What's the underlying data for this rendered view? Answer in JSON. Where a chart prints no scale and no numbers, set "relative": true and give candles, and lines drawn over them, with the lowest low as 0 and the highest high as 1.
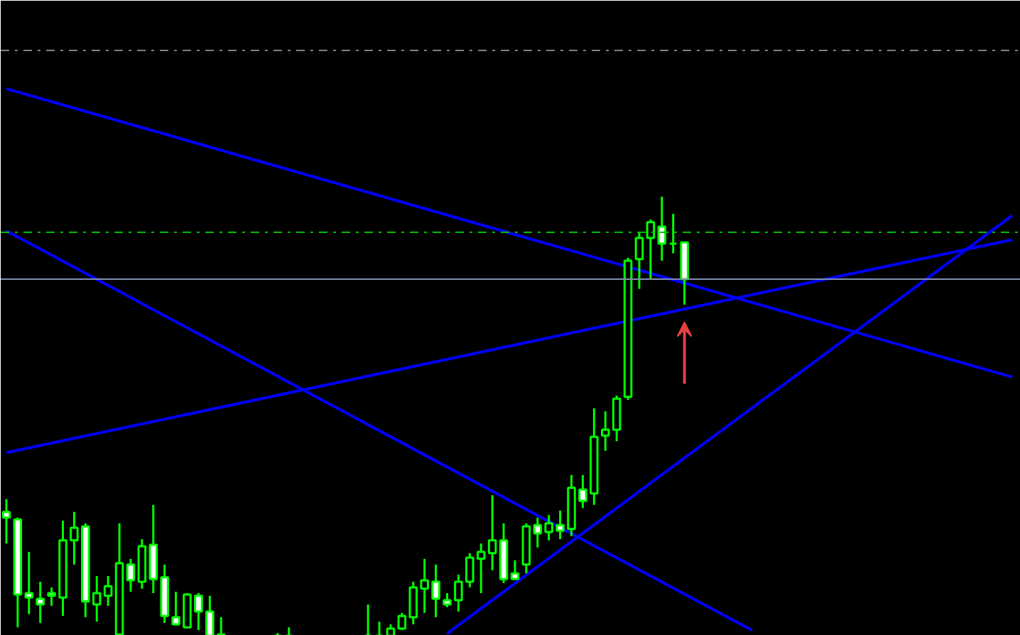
{
  "chart_data": {
    "type": "candlestick",
    "relative": true,
    "grid": false,
    "color": "#00ff00",
    "categories": [
      null,
      null,
      null,
      null,
      null,
      null,
      null,
      null,
      null,
      null,
      null,
      null,
      null,
      null,
      null,
      null,
      null,
      null,
      null,
      null,
      null,
      null,
      null,
      null,
      null,
      null,
      null,
      null,
      null,
      null,
      null,
      null,
      null,
      null,
      null,
      null,
      null,
      null,
      null,
      null,
      null,
      null,
      null,
      null,
      null,
      null,
      null,
      null,
      null,
      null,
      null,
      null,
      null,
      null,
      null,
      null,
      null,
      null,
      null,
      null,
      null,
      null,
      null,
      null,
      null,
      null,
      null,
      null,
      null,
      null,
      null,
      null,
      null,
      null,
      null,
      null,
      null,
      null,
      null,
      null,
      null,
      null,
      null,
      null,
      null,
      null,
      null,
      null,
      null,
      null
    ],
    "ohlc": [
      [
        0.282,
        0.311,
        0.21,
        0.269
      ],
      [
        0.265,
        0.269,
        0.019,
        0.094
      ],
      [
        0.097,
        0.191,
        0.049,
        0.087
      ],
      [
        0.084,
        0.123,
        0.029,
        0.071
      ],
      [
        0.097,
        0.11,
        0.068,
        0.091
      ],
      [
        0.087,
        0.262,
        0.045,
        0.217
      ],
      [
        0.217,
        0.282,
        0.162,
        0.246
      ],
      [
        0.249,
        0.256,
        0.042,
        0.078
      ],
      [
        0.071,
        0.136,
        0.032,
        0.097
      ],
      [
        0.091,
        0.136,
        0.068,
        0.113
      ],
      [
        0.003,
        0.256,
        0.0,
        0.165
      ],
      [
        0.162,
        0.175,
        0.1,
        0.126
      ],
      [
        0.123,
        0.22,
        0.107,
        0.204
      ],
      [
        0.207,
        0.298,
        0.097,
        0.129
      ],
      [
        0.133,
        0.162,
        0.029,
        0.045
      ],
      [
        0.042,
        0.1,
        0.023,
        0.026
      ],
      [
        0.019,
        0.097,
        0.019,
        0.094
      ],
      [
        0.091,
        0.097,
        0.013,
        0.055
      ],
      [
        0.055,
        0.091,
        0.0,
        0.0
      ],
      [
        0.003,
        0.042,
        0.0,
        0.0
      ],
      null,
      null,
      null,
      null,
      [
        0.0,
        0.006,
        0.0,
        0.0
      ],
      [
        0.0,
        0.019,
        0.0,
        0.0
      ],
      null,
      null,
      null,
      null,
      null,
      null,
      [
        0.0,
        0.071,
        0.0,
        0.0
      ],
      [
        0.0,
        0.032,
        0.0,
        0.0
      ],
      [
        0.0,
        0.026,
        0.0,
        0.016
      ],
      [
        0.016,
        0.052,
        0.013,
        0.045
      ],
      [
        0.042,
        0.123,
        0.026,
        0.11
      ],
      [
        0.107,
        0.175,
        0.052,
        0.126
      ],
      [
        0.123,
        0.162,
        0.042,
        0.084
      ],
      [
        0.081,
        0.097,
        0.065,
        0.071
      ],
      [
        0.081,
        0.139,
        0.055,
        0.123
      ],
      [
        0.123,
        0.188,
        0.11,
        0.178
      ],
      [
        0.175,
        0.21,
        0.097,
        0.191
      ],
      [
        0.188,
        0.32,
        0.149,
        0.217
      ],
      [
        0.217,
        0.256,
        0.12,
        0.129
      ],
      [
        0.142,
        0.172,
        0.129,
        0.129
      ],
      [
        0.162,
        0.256,
        0.142,
        0.249
      ],
      [
        0.252,
        0.269,
        0.201,
        0.233
      ],
      [
        0.236,
        0.275,
        0.217,
        0.256
      ],
      [
        0.252,
        0.285,
        0.22,
        0.239
      ],
      [
        0.243,
        0.366,
        0.227,
        0.337
      ],
      [
        0.333,
        0.366,
        0.291,
        0.307
      ],
      [
        0.324,
        0.518,
        0.298,
        0.453
      ],
      [
        0.456,
        0.511,
        0.421,
        0.469
      ],
      [
        0.469,
        0.547,
        0.443,
        0.54
      ],
      [
        0.544,
        0.861,
        0.537,
        0.854
      ],
      [
        0.858,
        0.919,
        0.79,
        0.906
      ],
      [
        0.906,
        0.948,
        0.812,
        0.942
      ],
      [
        0.932,
        1.0,
        0.854,
        0.893
      ],
      [
        0.893,
        0.961,
        0.871,
        0.893
      ],
      [
        0.896,
        0.896,
        0.754,
        0.812
      ],
      null,
      null,
      null,
      null,
      null,
      null,
      null,
      null,
      null,
      null,
      null,
      null,
      null,
      null,
      null,
      null,
      null,
      null,
      null,
      null,
      null,
      null,
      null,
      null,
      null,
      null,
      null,
      null,
      null
    ],
    "series": [
      {
        "type": "line",
        "color": "#0000ff",
        "values": [
          1.246,
          null,
          null,
          null,
          null,
          null,
          null,
          null,
          null,
          null,
          null,
          null,
          null,
          null,
          null,
          null,
          null,
          null,
          null,
          null,
          null,
          null,
          null,
          null,
          null,
          null,
          null,
          null,
          null,
          null,
          null,
          null,
          null,
          null,
          null,
          null,
          null,
          null,
          null,
          null,
          null,
          null,
          null,
          null,
          null,
          null,
          null,
          null,
          null,
          null,
          null,
          null,
          null,
          null,
          null,
          null,
          null,
          null,
          null,
          null,
          null,
          null,
          null,
          null,
          null,
          null,
          null,
          null,
          null,
          null,
          null,
          null,
          null,
          null,
          null,
          null,
          null,
          null,
          null,
          null,
          null,
          null,
          null,
          null,
          null,
          null,
          null,
          null,
          null,
          0.589
        ]
      },
      {
        "type": "line",
        "color": "#0000ff",
        "values": [
          0.922,
          null,
          null,
          null,
          null,
          null,
          null,
          null,
          null,
          null,
          null,
          null,
          null,
          null,
          null,
          null,
          null,
          null,
          null,
          null,
          null,
          null,
          null,
          null,
          null,
          null,
          null,
          null,
          null,
          null,
          null,
          null,
          null,
          null,
          null,
          null,
          null,
          null,
          null,
          null,
          null,
          null,
          null,
          null,
          null,
          null,
          null,
          null,
          null,
          null,
          null,
          null,
          null,
          null,
          null,
          null,
          null,
          null,
          null,
          null,
          null,
          null,
          null,
          null,
          null,
          null,
          0.012,
          null,
          null,
          null,
          null,
          null,
          null,
          null,
          null,
          null,
          null,
          null,
          null,
          null,
          null,
          null,
          null,
          null,
          null,
          null,
          null,
          null,
          null,
          null
        ]
      },
      {
        "type": "line",
        "color": "#0000ff",
        "values": [
          0.417,
          null,
          null,
          null,
          null,
          null,
          null,
          null,
          null,
          null,
          null,
          null,
          null,
          null,
          null,
          null,
          null,
          null,
          null,
          null,
          null,
          null,
          null,
          null,
          null,
          null,
          null,
          null,
          null,
          null,
          null,
          null,
          null,
          null,
          null,
          null,
          null,
          null,
          null,
          null,
          null,
          null,
          null,
          null,
          null,
          null,
          null,
          null,
          null,
          null,
          null,
          null,
          null,
          null,
          null,
          null,
          null,
          null,
          null,
          null,
          null,
          null,
          null,
          null,
          null,
          null,
          null,
          null,
          null,
          null,
          null,
          null,
          null,
          null,
          null,
          null,
          null,
          null,
          null,
          null,
          null,
          null,
          null,
          null,
          null,
          null,
          null,
          null,
          null,
          0.902
        ]
      },
      {
        "type": "line",
        "color": "#0000ff",
        "values": [
          null,
          null,
          null,
          null,
          null,
          null,
          null,
          null,
          null,
          null,
          null,
          null,
          null,
          null,
          null,
          null,
          null,
          null,
          null,
          null,
          null,
          null,
          null,
          null,
          null,
          null,
          null,
          null,
          null,
          null,
          null,
          null,
          null,
          null,
          null,
          null,
          null,
          null,
          null,
          0.005,
          null,
          null,
          null,
          null,
          null,
          null,
          null,
          null,
          null,
          null,
          null,
          null,
          null,
          null,
          null,
          null,
          null,
          null,
          null,
          null,
          null,
          null,
          null,
          null,
          null,
          null,
          null,
          null,
          null,
          null,
          null,
          null,
          null,
          null,
          null,
          null,
          null,
          null,
          null,
          null,
          null,
          null,
          null,
          null,
          null,
          null,
          null,
          null,
          null,
          0.957
        ]
      }
    ],
    "ref_lines": [
      {
        "axis": "y",
        "value": 1.333,
        "color": "#808080",
        "line_style": "dashdot"
      },
      {
        "axis": "y",
        "value": 0.919,
        "color": "#00c000",
        "line_style": "dashdot"
      },
      {
        "axis": "y",
        "value": 0.812,
        "color": "#8090b0",
        "line_style": "solid"
      }
    ]
  }
}
